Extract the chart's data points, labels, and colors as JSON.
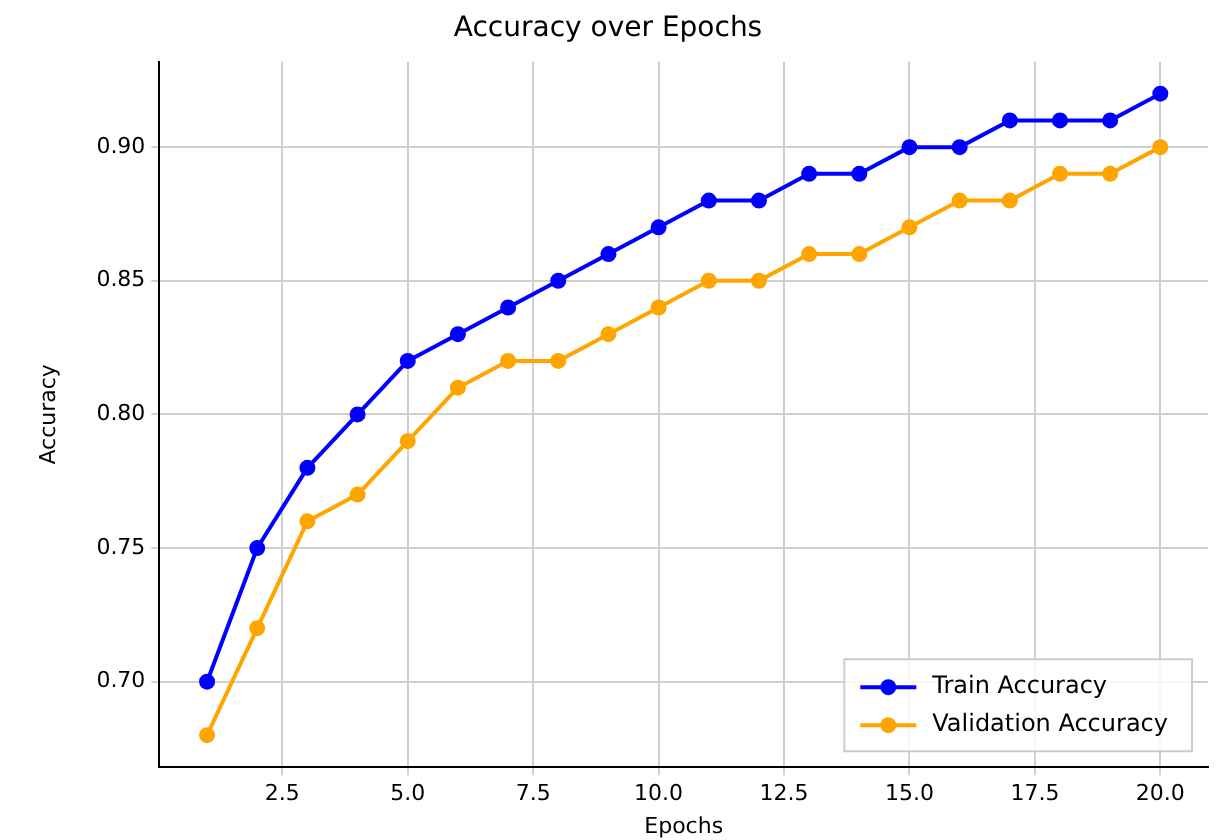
{
  "chart_data": {
    "type": "line",
    "title": "Accuracy over Epochs",
    "xlabel": "Epochs",
    "ylabel": "Accuracy",
    "x": [
      1,
      2,
      3,
      4,
      5,
      6,
      7,
      8,
      9,
      10,
      11,
      12,
      13,
      14,
      15,
      16,
      17,
      18,
      19,
      20
    ],
    "series": [
      {
        "name": "Train Accuracy",
        "color": "#0000ff",
        "values": [
          0.7,
          0.75,
          0.78,
          0.8,
          0.82,
          0.83,
          0.84,
          0.85,
          0.86,
          0.87,
          0.88,
          0.88,
          0.89,
          0.89,
          0.9,
          0.9,
          0.91,
          0.91,
          0.91,
          0.92
        ]
      },
      {
        "name": "Validation Accuracy",
        "color": "#ffa500",
        "values": [
          0.68,
          0.72,
          0.76,
          0.77,
          0.79,
          0.81,
          0.82,
          0.82,
          0.83,
          0.84,
          0.85,
          0.85,
          0.86,
          0.86,
          0.87,
          0.88,
          0.88,
          0.89,
          0.89,
          0.9
        ]
      }
    ],
    "xlim": [
      0.05,
      20.95
    ],
    "xticks": [
      {
        "value": 2.5,
        "label": "2.5"
      },
      {
        "value": 5,
        "label": "5.0"
      },
      {
        "value": 7.5,
        "label": "7.5"
      },
      {
        "value": 10,
        "label": "10.0"
      },
      {
        "value": 12.5,
        "label": "12.5"
      },
      {
        "value": 15,
        "label": "15.0"
      },
      {
        "value": 17.5,
        "label": "17.5"
      },
      {
        "value": 20,
        "label": "20.0"
      }
    ],
    "ylim": [
      0.668,
      0.932
    ],
    "yticks": [
      {
        "value": 0.7,
        "label": "0.70"
      },
      {
        "value": 0.75,
        "label": "0.75"
      },
      {
        "value": 0.8,
        "label": "0.80"
      },
      {
        "value": 0.85,
        "label": "0.85"
      },
      {
        "value": 0.9,
        "label": "0.90"
      }
    ],
    "grid": true,
    "legend": "bottom right",
    "marker": "circle",
    "line_style": "solid"
  }
}
